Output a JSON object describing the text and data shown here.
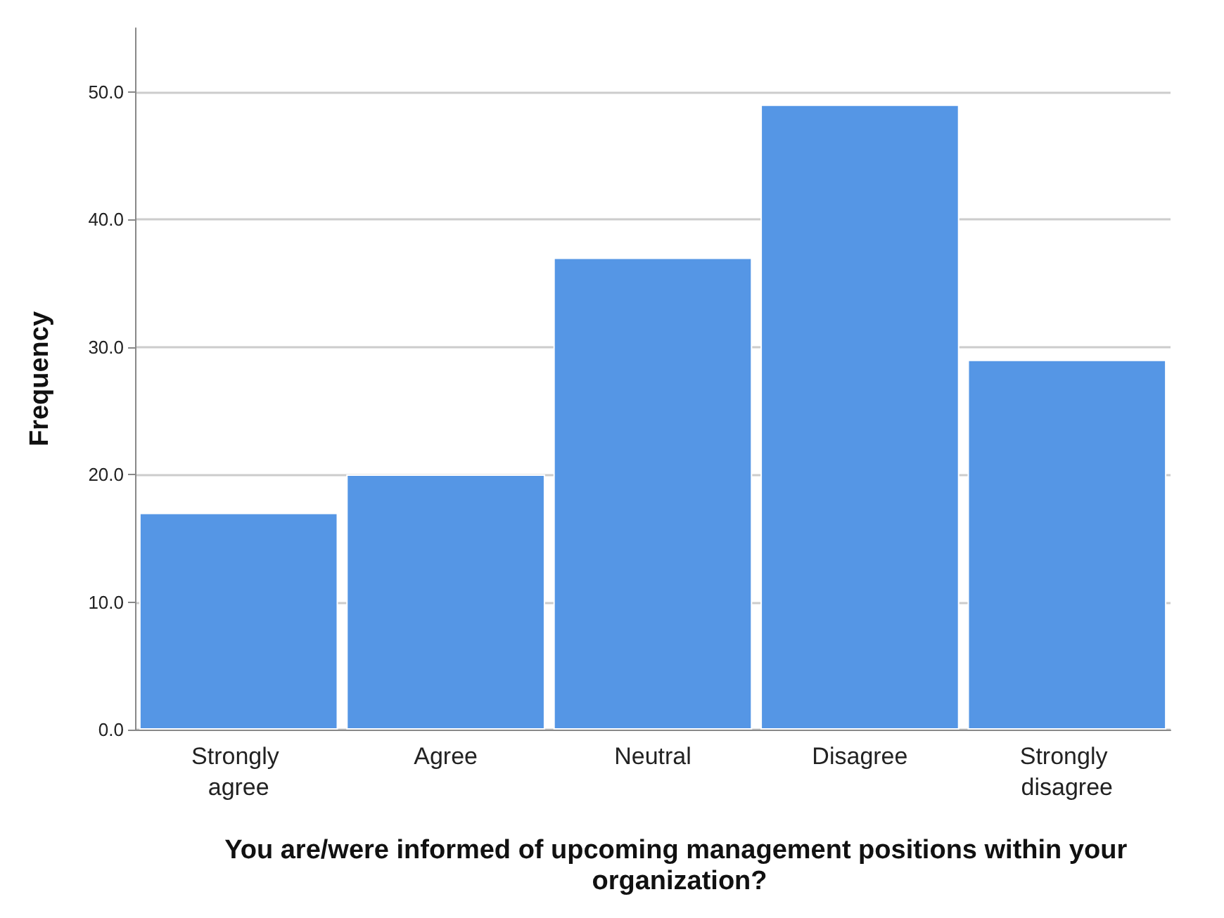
{
  "chart_data": {
    "type": "bar",
    "xlabel": "You are/were informed of upcoming management positions within your organization?",
    "ylabel": "Frequency",
    "categories": [
      "Strongly agree",
      "Agree",
      "Neutral",
      "Disagree",
      "Strongly disagree"
    ],
    "values": [
      17,
      20,
      37,
      49,
      29
    ],
    "color": "#5596e5",
    "ylim": [
      0,
      55
    ],
    "yticks": [
      {
        "value": 0,
        "label": "0.0"
      },
      {
        "value": 10,
        "label": "10.0"
      },
      {
        "value": 20,
        "label": "20.0"
      },
      {
        "value": 30,
        "label": "30.0"
      },
      {
        "value": 40,
        "label": "40.0"
      },
      {
        "value": 50,
        "label": "50.0"
      }
    ],
    "grid": "y"
  }
}
